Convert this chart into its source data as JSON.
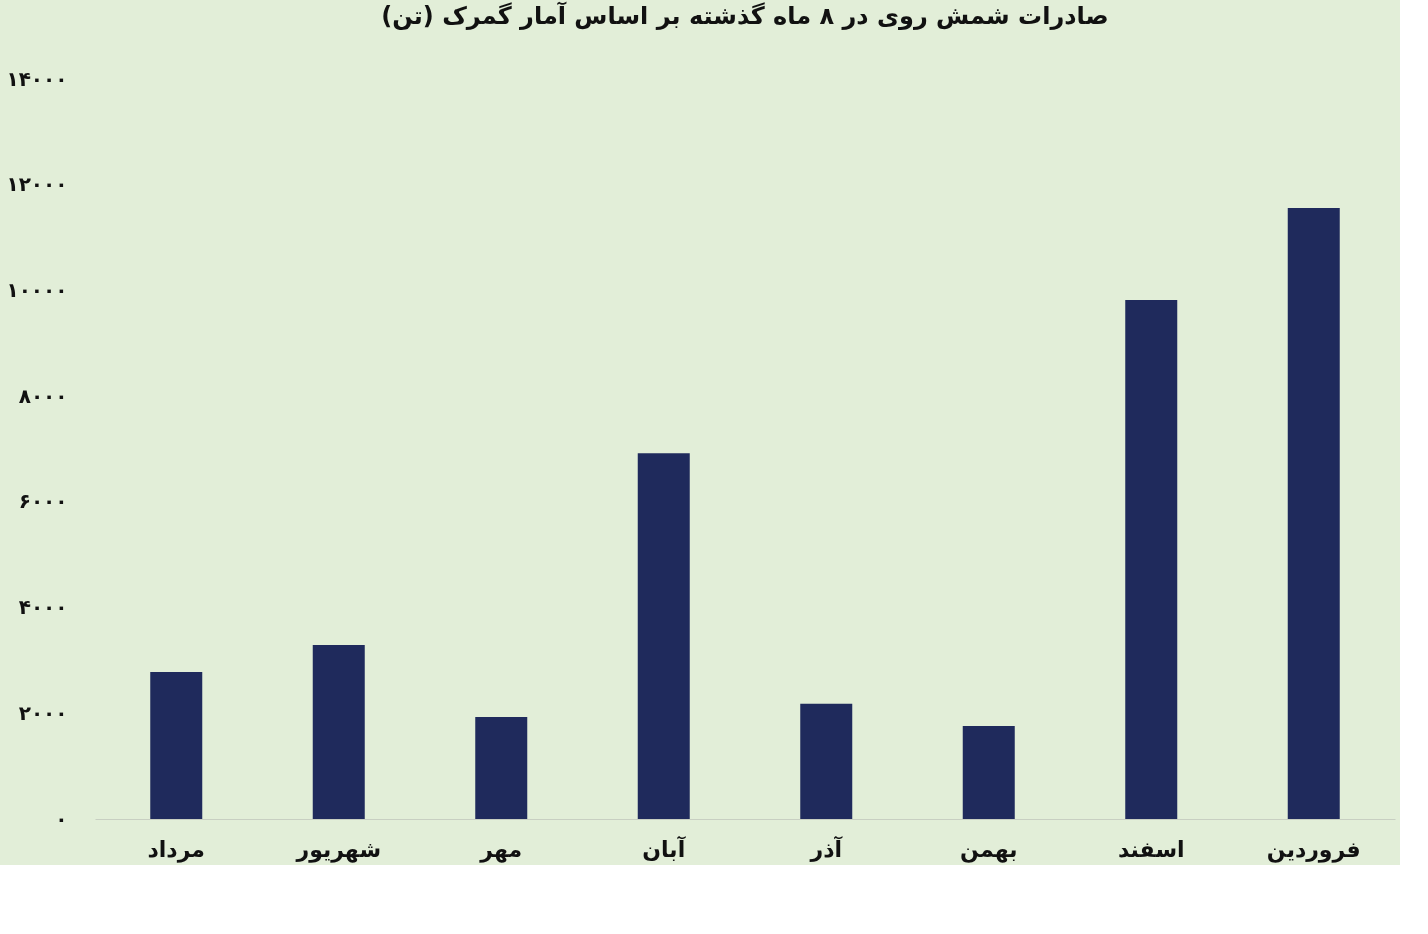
{
  "chart_data": {
    "type": "bar",
    "title": "صادرات شمش روی در ۸ ماه گذشته بر اساس آمار گمرک (تن)",
    "categories": [
      "مرداد",
      "شهریور",
      "مهر",
      "آبان",
      "آذر",
      "بهمن",
      "اسفند",
      "فروردین"
    ],
    "values": [
      2780,
      3290,
      1930,
      6920,
      2180,
      1760,
      9820,
      11560
    ],
    "color": "#1f2a5c",
    "ylim": [
      0,
      14000
    ],
    "yticks": [
      {
        "value": 0,
        "label": "۰"
      },
      {
        "value": 2000,
        "label": "۲۰۰۰"
      },
      {
        "value": 4000,
        "label": "۴۰۰۰"
      },
      {
        "value": 6000,
        "label": "۶۰۰۰"
      },
      {
        "value": 8000,
        "label": "۸۰۰۰"
      },
      {
        "value": 10000,
        "label": "۱۰۰۰۰"
      },
      {
        "value": 12000,
        "label": "۱۲۰۰۰"
      },
      {
        "value": 14000,
        "label": "۱۴۰۰۰"
      }
    ],
    "grid": false
  }
}
